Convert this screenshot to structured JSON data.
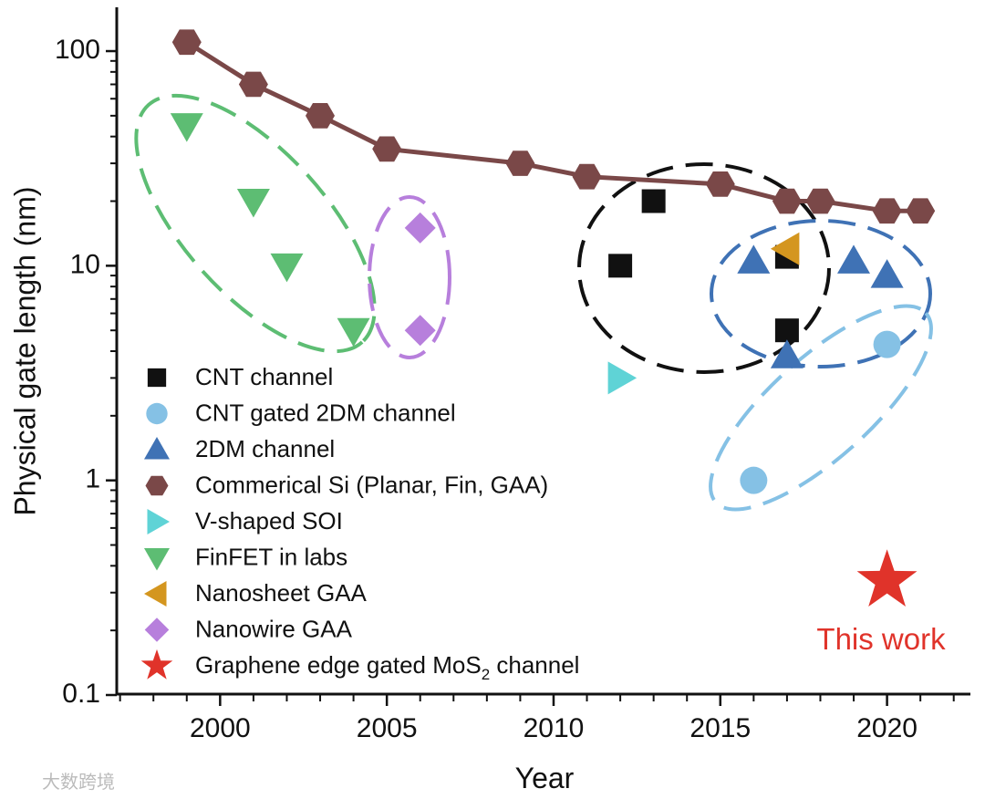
{
  "chart_data": {
    "type": "scatter",
    "xlabel": "Year",
    "ylabel": "Physical gate length (nm)",
    "xlim": [
      1996.9,
      2022.5
    ],
    "ylim": [
      0.1,
      160
    ],
    "yscale": "log",
    "x_ticks": [
      "2000",
      "2005",
      "2010",
      "2015",
      "2020"
    ],
    "y_ticks": [
      "0.1",
      "1",
      "10",
      "100"
    ],
    "legend_position": "bottom-left",
    "series": [
      {
        "name": "CNT channel",
        "marker": "square",
        "color": "#111111",
        "x": [
          2012,
          2013,
          2017,
          2017
        ],
        "y": [
          10,
          20,
          11,
          5
        ]
      },
      {
        "name": "CNT gated 2DM channel",
        "marker": "circle",
        "color": "#85c1e5",
        "x": [
          2016,
          2020
        ],
        "y": [
          1,
          4.3
        ]
      },
      {
        "name": "2DM channel",
        "marker": "triangle-up",
        "color": "#3f72b5",
        "x": [
          2016,
          2017,
          2019,
          2020
        ],
        "y": [
          10.5,
          3.8,
          10.5,
          9
        ]
      },
      {
        "name": "Commerical Si (Planar, Fin, GAA)",
        "marker": "hexagon",
        "color": "#7a4848",
        "line": true,
        "x": [
          1999,
          2001,
          2003,
          2005,
          2009,
          2011,
          2015,
          2017,
          2018,
          2020,
          2021
        ],
        "y": [
          110,
          70,
          50,
          35,
          30,
          26,
          24,
          20,
          20,
          18,
          18
        ]
      },
      {
        "name": "V-shaped SOI",
        "marker": "triangle-right",
        "color": "#5fd3d6",
        "x": [
          2012
        ],
        "y": [
          3
        ]
      },
      {
        "name": "FinFET in labs",
        "marker": "triangle-down",
        "color": "#5dbd73",
        "x": [
          1999,
          2001,
          2002,
          2004
        ],
        "y": [
          45,
          20,
          10,
          5
        ]
      },
      {
        "name": "Nanosheet GAA",
        "marker": "triangle-left",
        "color": "#d4961f",
        "x": [
          2017
        ],
        "y": [
          12
        ]
      },
      {
        "name": "Nanowire GAA",
        "marker": "diamond",
        "color": "#b77fdc",
        "x": [
          2006,
          2006
        ],
        "y": [
          15,
          5
        ]
      },
      {
        "name": "Graphene edge gated MoS",
        "name_subscript": "2",
        "name_suffix": " channel",
        "marker": "star",
        "color": "#e0332a",
        "x": [
          2020
        ],
        "y": [
          0.34
        ]
      }
    ],
    "annotations": [
      {
        "text": "This work",
        "color": "#e0332a"
      }
    ],
    "groupings": [
      {
        "series": "FinFET in labs",
        "color": "#5dbd73"
      },
      {
        "series": "Nanowire GAA",
        "color": "#b77fdc"
      },
      {
        "series": "CNT channel",
        "color": "#111111"
      },
      {
        "series": "2DM channel",
        "color": "#3f72b5"
      },
      {
        "series": "CNT gated 2DM channel",
        "color": "#85c1e5"
      }
    ]
  },
  "watermark": "大数跨境"
}
